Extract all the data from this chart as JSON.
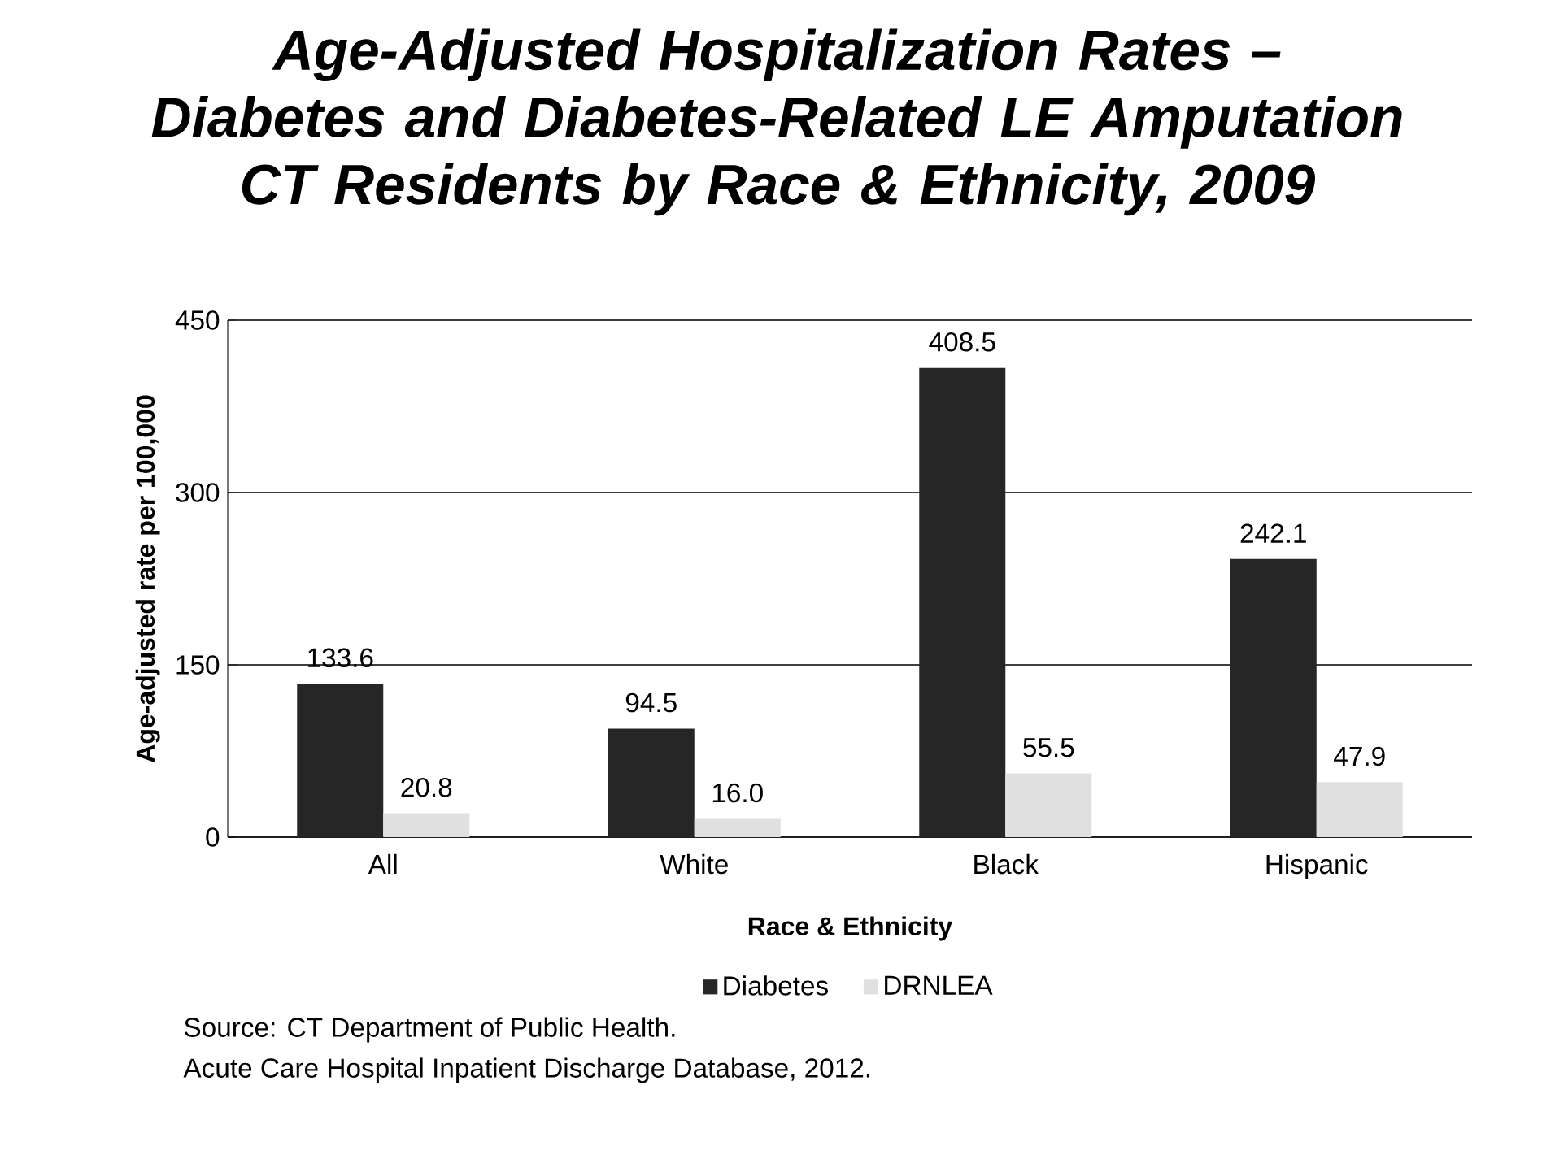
{
  "chart_data": {
    "type": "bar",
    "title": "Age-Adjusted Hospitalization Rates – Diabetes and Diabetes-Related LE Amputation",
    "subtitle": "CT Residents by Race & Ethnicity, 2009",
    "xlabel": "Race & Ethnicity",
    "ylabel": "Age-adjusted rate per 100,000",
    "categories": [
      "All",
      "White",
      "Black",
      "Hispanic"
    ],
    "series": [
      {
        "name": "Diabetes",
        "color": "#262626",
        "values": [
          133.6,
          94.5,
          408.5,
          242.1
        ],
        "value_labels": [
          "133.6",
          "94.5",
          "408.5",
          "242.1"
        ]
      },
      {
        "name": "DRNLEA",
        "color": "#e0e0e0",
        "values": [
          20.8,
          16.0,
          55.5,
          47.9
        ],
        "value_labels": [
          "20.8",
          "16.0",
          "55.5",
          "47.9"
        ]
      }
    ],
    "ylim": [
      0,
      450
    ],
    "yticks": [
      0,
      150,
      300,
      450
    ],
    "grid": "y",
    "legend": "bottom",
    "annotations": [
      "Source: CT Department of Public Health.",
      "Acute Care Hospital Inpatient Discharge Database, 2012."
    ]
  }
}
